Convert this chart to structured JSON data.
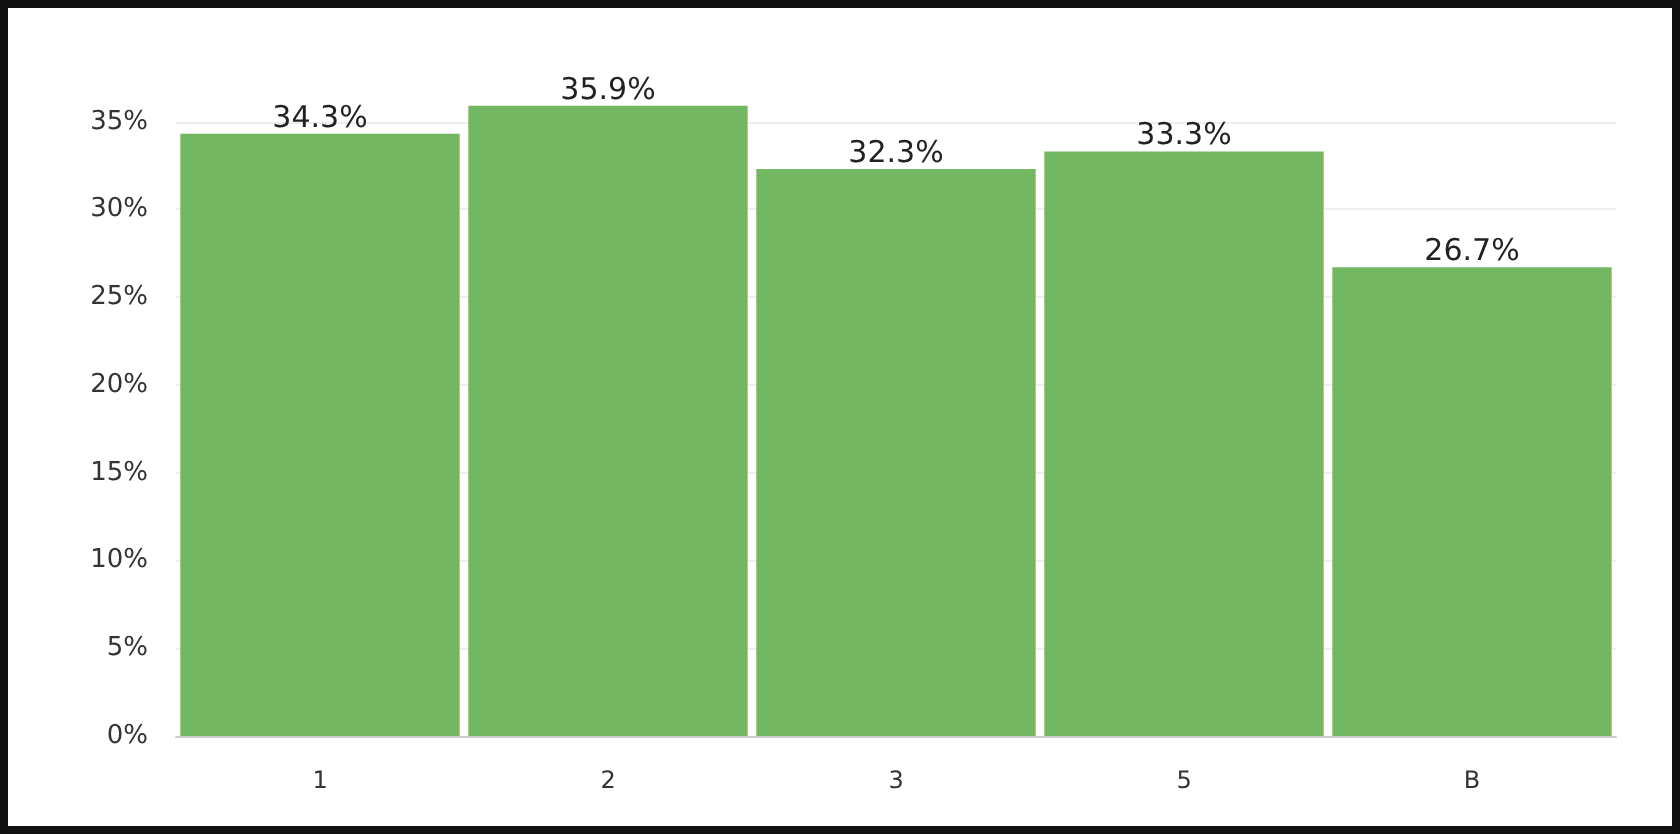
{
  "chart_data": {
    "type": "bar",
    "categories": [
      "1",
      "2",
      "3",
      "5",
      "B"
    ],
    "values": [
      34.3,
      35.9,
      32.3,
      33.3,
      26.7
    ],
    "value_labels": [
      "34.3%",
      "35.9%",
      "32.3%",
      "33.3%",
      "26.7%"
    ],
    "color": "#73b763",
    "ylim": [
      0,
      36
    ],
    "yticks": [
      {
        "value": 0,
        "label": "0%"
      },
      {
        "value": 5,
        "label": "5%"
      },
      {
        "value": 10,
        "label": "10%"
      },
      {
        "value": 15,
        "label": "15%"
      },
      {
        "value": 20,
        "label": "20%"
      },
      {
        "value": 25,
        "label": "25%"
      },
      {
        "value": 30,
        "label": "30%"
      },
      {
        "value": 35,
        "label": "35%"
      }
    ],
    "grid": "y"
  }
}
